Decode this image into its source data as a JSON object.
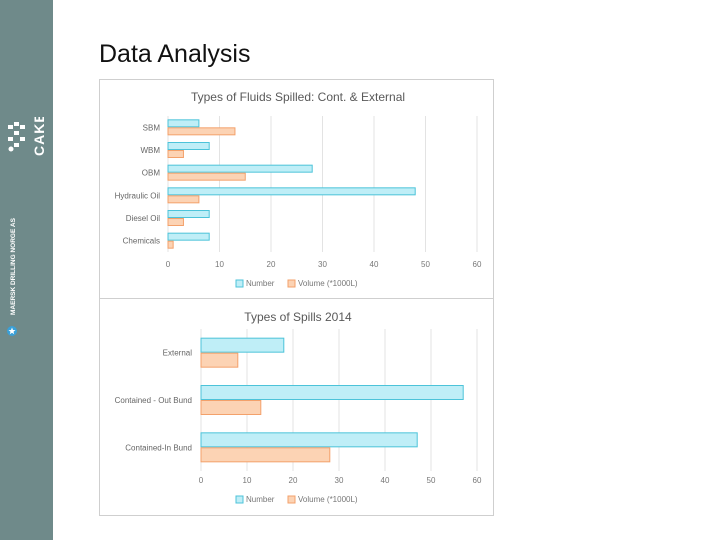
{
  "slide": {
    "title": "Data Analysis"
  },
  "sidebar": {
    "brand": "CAKE",
    "company": "MAERSK DRILLING NORGE AS"
  },
  "colors": {
    "number_fill": "#bfeef7",
    "number_stroke": "#4cc3d9",
    "volume_fill": "#fcd3b4",
    "volume_stroke": "#f3a16b",
    "sidebar_bg": "#6f8a8a"
  },
  "chart_data": [
    {
      "type": "bar",
      "orientation": "horizontal",
      "title": "Types of Fluids Spilled: Cont. & External",
      "categories": [
        "SBM",
        "WBM",
        "OBM",
        "Hydraulic Oil",
        "Diesel Oil",
        "Chemicals"
      ],
      "series": [
        {
          "name": "Number",
          "values": [
            6,
            8,
            28,
            48,
            8,
            8
          ]
        },
        {
          "name": "Volume (*1000L)",
          "values": [
            13,
            3,
            15,
            6,
            3,
            1
          ]
        }
      ],
      "xlim": [
        0,
        60
      ],
      "xticks": [
        "0",
        "10",
        "20",
        "30",
        "40",
        "50",
        "60"
      ],
      "grid": true,
      "legend": "bottom"
    },
    {
      "type": "bar",
      "orientation": "horizontal",
      "title": "Types of Spills 2014",
      "categories": [
        "External",
        "Contained - Out Bund",
        "Contained-In Bund"
      ],
      "series": [
        {
          "name": "Number",
          "values": [
            18,
            57,
            47
          ]
        },
        {
          "name": "Volume (*1000L)",
          "values": [
            8,
            13,
            28
          ]
        }
      ],
      "xlim": [
        0,
        60
      ],
      "xticks": [
        "0",
        "10",
        "20",
        "30",
        "40",
        "50",
        "60"
      ],
      "grid": true,
      "legend": "bottom"
    }
  ]
}
